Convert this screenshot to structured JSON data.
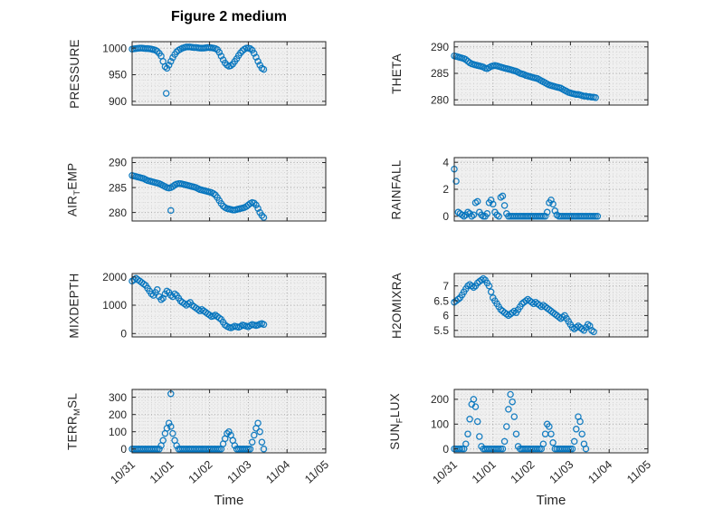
{
  "figure": {
    "title": "Figure 2 medium",
    "marker_color": "#0072BD",
    "axis_color": "#262626",
    "grid_major_color": "#ababab",
    "grid_minor_color": "#d6d6d6",
    "plot_bg": "#f0f0f0"
  },
  "x_axis": {
    "label": "Time",
    "lim": [
      0,
      5
    ],
    "tick_values": [
      0,
      1,
      2,
      3,
      4,
      5
    ],
    "tick_labels": [
      "10/31",
      "11/01",
      "11/02",
      "11/03",
      "11/04",
      "11/05"
    ],
    "minor_step": 0.1
  },
  "chart_data": [
    {
      "name": "pressure",
      "type": "scatter",
      "ylabel_parts": [
        {
          "text": "PRESSURE",
          "sub": false
        }
      ],
      "ylim": [
        893,
        1012
      ],
      "yticks": [
        {
          "v": 900,
          "label": "900"
        },
        {
          "v": 950,
          "label": "950"
        },
        {
          "v": 1000,
          "label": "1000"
        }
      ],
      "y_minor_step": 10,
      "x_start": 0,
      "x_step": 0.05,
      "y": [
        998,
        998.5,
        999,
        999.5,
        1000,
        1000,
        999.5,
        999,
        999,
        998.5,
        998,
        997,
        996,
        994,
        990,
        985,
        975,
        965,
        962,
        968,
        975,
        982,
        988,
        993,
        996,
        998,
        1000,
        1001,
        1002,
        1002,
        1002,
        1001.5,
        1001,
        1001,
        1000.5,
        1000,
        1000,
        1000,
        1000.5,
        1001,
        1001,
        1000.5,
        1000,
        999,
        997,
        992,
        985,
        978,
        972,
        968,
        966,
        967,
        970,
        975,
        980,
        986,
        991,
        995,
        998,
        1000,
        1000,
        999,
        996,
        990,
        983,
        975,
        968,
        962,
        960
      ],
      "extra_points": [
        [
          0.88,
          915
        ]
      ],
      "show_x_tick_labels": false
    },
    {
      "name": "theta",
      "type": "scatter",
      "ylabel_parts": [
        {
          "text": "THETA",
          "sub": false
        }
      ],
      "ylim": [
        279,
        291
      ],
      "yticks": [
        {
          "v": 280,
          "label": "280"
        },
        {
          "v": 285,
          "label": "285"
        },
        {
          "v": 290,
          "label": "290"
        }
      ],
      "y_minor_step": 1,
      "x_start": 0,
      "x_step": 0.05,
      "y": [
        288.3,
        288.2,
        288.1,
        288,
        287.9,
        287.8,
        287.6,
        287.3,
        287,
        286.8,
        286.7,
        286.6,
        286.5,
        286.4,
        286.3,
        286.2,
        286,
        285.9,
        286.1,
        286.3,
        286.4,
        286.5,
        286.4,
        286.3,
        286.2,
        286.1,
        286,
        285.9,
        285.8,
        285.7,
        285.6,
        285.5,
        285.4,
        285.2,
        285,
        284.9,
        284.8,
        284.6,
        284.5,
        284.4,
        284.3,
        284.2,
        284.1,
        284,
        283.8,
        283.6,
        283.4,
        283.2,
        283,
        282.8,
        282.7,
        282.6,
        282.5,
        282.4,
        282.3,
        282.2,
        282,
        281.8,
        281.6,
        281.4,
        281.3,
        281.2,
        281.1,
        281,
        281,
        280.9,
        280.8,
        280.7,
        280.7,
        280.6,
        280.6,
        280.5,
        280.5,
        280.4
      ],
      "extra_points": [],
      "show_x_tick_labels": false
    },
    {
      "name": "air-temp",
      "type": "scatter",
      "ylabel_parts": [
        {
          "text": "AIR",
          "sub": false
        },
        {
          "text": "T",
          "sub": true
        },
        {
          "text": "EMP",
          "sub": false
        }
      ],
      "ylim": [
        278.3,
        291
      ],
      "yticks": [
        {
          "v": 280,
          "label": "280"
        },
        {
          "v": 285,
          "label": "285"
        },
        {
          "v": 290,
          "label": "290"
        }
      ],
      "y_minor_step": 1,
      "x_start": 0,
      "x_step": 0.05,
      "y": [
        287.4,
        287.3,
        287.2,
        287.1,
        287,
        286.9,
        286.8,
        286.6,
        286.4,
        286.3,
        286.2,
        286.1,
        286,
        285.9,
        285.8,
        285.6,
        285.4,
        285.2,
        285,
        284.9,
        285,
        285.2,
        285.5,
        285.7,
        285.8,
        285.8,
        285.7,
        285.6,
        285.5,
        285.4,
        285.3,
        285.2,
        285.1,
        285,
        284.8,
        284.6,
        284.5,
        284.4,
        284.3,
        284.2,
        284.1,
        284,
        283.8,
        283.5,
        283,
        282.4,
        281.8,
        281.3,
        281,
        280.8,
        280.7,
        280.6,
        280.5,
        280.5,
        280.6,
        280.7,
        280.8,
        280.9,
        281,
        281.2,
        281.5,
        281.8,
        282,
        281.9,
        281.5,
        280.8,
        280,
        279.4,
        279
      ],
      "extra_points": [
        [
          1.0,
          280.4
        ]
      ],
      "show_x_tick_labels": false
    },
    {
      "name": "rainfall",
      "type": "scatter",
      "ylabel_parts": [
        {
          "text": "RAINFALL",
          "sub": false
        }
      ],
      "ylim": [
        -0.35,
        4.35
      ],
      "yticks": [
        {
          "v": 0,
          "label": "0"
        },
        {
          "v": 2,
          "label": "2"
        },
        {
          "v": 4,
          "label": "4"
        }
      ],
      "y_minor_step": 0.5,
      "x_start": 0,
      "x_step": 0.05,
      "y": [
        3.5,
        2.6,
        0.3,
        0.2,
        0.1,
        0,
        0.1,
        0.3,
        0.2,
        0,
        0.1,
        1,
        1.1,
        0.3,
        0.1,
        0,
        0,
        0.2,
        1,
        1.2,
        0.9,
        0.3,
        0.1,
        0,
        1.4,
        1.5,
        0.8,
        0.2,
        0,
        0,
        0,
        0,
        0,
        0,
        0,
        0,
        0,
        0,
        0,
        0,
        0,
        0,
        0,
        0,
        0,
        0,
        0,
        0,
        0.3,
        1,
        1.2,
        0.9,
        0.4,
        0.1,
        0,
        0,
        0,
        0,
        0,
        0,
        0,
        0,
        0,
        0,
        0,
        0,
        0,
        0,
        0,
        0,
        0,
        0,
        0,
        0,
        0
      ],
      "extra_points": [],
      "show_x_tick_labels": false
    },
    {
      "name": "mixdepth",
      "type": "scatter",
      "ylabel_parts": [
        {
          "text": "MIXDEPTH",
          "sub": false
        }
      ],
      "ylim": [
        -120,
        2120
      ],
      "yticks": [
        {
          "v": 0,
          "label": "0"
        },
        {
          "v": 1000,
          "label": "1000"
        },
        {
          "v": 2000,
          "label": "2000"
        }
      ],
      "y_minor_step": 200,
      "x_start": 0,
      "x_step": 0.05,
      "y": [
        1850,
        1900,
        1950,
        1900,
        1850,
        1800,
        1750,
        1700,
        1600,
        1500,
        1400,
        1350,
        1450,
        1550,
        1300,
        1200,
        1250,
        1400,
        1500,
        1450,
        1350,
        1300,
        1400,
        1350,
        1250,
        1150,
        1100,
        1050,
        1000,
        1050,
        1100,
        1000,
        950,
        900,
        850,
        800,
        850,
        800,
        750,
        700,
        650,
        600,
        620,
        650,
        600,
        550,
        500,
        400,
        300,
        250,
        220,
        200,
        230,
        260,
        240,
        220,
        250,
        300,
        280,
        260,
        240,
        280,
        320,
        300,
        280,
        300,
        330,
        350,
        320
      ],
      "extra_points": [],
      "show_x_tick_labels": false
    },
    {
      "name": "h2omixra",
      "type": "scatter",
      "ylabel_parts": [
        {
          "text": "H2OMIXRA",
          "sub": false
        }
      ],
      "ylim": [
        5.28,
        7.42
      ],
      "yticks": [
        {
          "v": 5.5,
          "label": "5.5"
        },
        {
          "v": 6,
          "label": "6"
        },
        {
          "v": 6.5,
          "label": "6.5"
        },
        {
          "v": 7,
          "label": "7"
        }
      ],
      "y_minor_step": 0.1,
      "x_start": 0,
      "x_step": 0.05,
      "y": [
        6.45,
        6.5,
        6.55,
        6.6,
        6.7,
        6.8,
        6.9,
        7,
        7.05,
        7,
        6.95,
        7,
        7.1,
        7.15,
        7.2,
        7.25,
        7.2,
        7.1,
        7,
        6.8,
        6.6,
        6.5,
        6.4,
        6.3,
        6.2,
        6.15,
        6.1,
        6.05,
        6,
        6.05,
        6.1,
        6.15,
        6.1,
        6.2,
        6.3,
        6.4,
        6.45,
        6.5,
        6.55,
        6.5,
        6.45,
        6.4,
        6.45,
        6.4,
        6.35,
        6.3,
        6.35,
        6.3,
        6.25,
        6.2,
        6.15,
        6.1,
        6.05,
        6,
        5.95,
        5.9,
        5.95,
        6,
        5.9,
        5.8,
        5.7,
        5.6,
        5.55,
        5.6,
        5.65,
        5.6,
        5.55,
        5.5,
        5.6,
        5.7,
        5.65,
        5.5,
        5.45
      ],
      "extra_points": [],
      "show_x_tick_labels": false
    },
    {
      "name": "terr-msl",
      "type": "scatter",
      "ylabel_parts": [
        {
          "text": "TERR",
          "sub": false
        },
        {
          "text": "M",
          "sub": true
        },
        {
          "text": "SL",
          "sub": false
        }
      ],
      "ylim": [
        -22,
        345
      ],
      "yticks": [
        {
          "v": 0,
          "label": "0"
        },
        {
          "v": 100,
          "label": "100"
        },
        {
          "v": 200,
          "label": "200"
        },
        {
          "v": 300,
          "label": "300"
        }
      ],
      "y_minor_step": 20,
      "x_start": 0,
      "x_step": 0.05,
      "y": [
        0,
        0,
        0,
        0,
        0,
        0,
        0,
        0,
        0,
        0,
        0,
        0,
        0,
        0,
        0,
        20,
        50,
        90,
        120,
        150,
        130,
        90,
        50,
        20,
        0,
        0,
        0,
        0,
        0,
        0,
        0,
        0,
        0,
        0,
        0,
        0,
        0,
        0,
        0,
        0,
        0,
        0,
        0,
        0,
        0,
        0,
        0,
        30,
        60,
        90,
        100,
        80,
        50,
        20,
        0,
        0,
        0,
        0,
        0,
        0,
        0,
        0,
        40,
        80,
        120,
        150,
        100,
        40,
        0
      ],
      "extra_points": [
        [
          1.0,
          320
        ]
      ],
      "show_x_tick_labels": true
    },
    {
      "name": "sun-flux",
      "type": "scatter",
      "ylabel_parts": [
        {
          "text": "SUN",
          "sub": false
        },
        {
          "text": "F",
          "sub": true
        },
        {
          "text": "LUX",
          "sub": false
        }
      ],
      "ylim": [
        -16,
        240
      ],
      "yticks": [
        {
          "v": 0,
          "label": "0"
        },
        {
          "v": 100,
          "label": "100"
        },
        {
          "v": 200,
          "label": "200"
        }
      ],
      "y_minor_step": 20,
      "x_start": 0,
      "x_step": 0.05,
      "y": [
        0,
        0,
        0,
        0,
        0,
        0,
        20,
        60,
        120,
        180,
        200,
        170,
        110,
        50,
        10,
        0,
        0,
        0,
        0,
        0,
        0,
        0,
        0,
        0,
        0,
        0,
        30,
        90,
        160,
        220,
        190,
        130,
        60,
        10,
        0,
        0,
        0,
        0,
        0,
        0,
        0,
        0,
        0,
        0,
        0,
        0,
        20,
        60,
        100,
        90,
        60,
        25,
        0,
        0,
        0,
        0,
        0,
        0,
        0,
        0,
        0,
        0,
        30,
        80,
        130,
        110,
        60,
        20,
        0
      ],
      "extra_points": [],
      "show_x_tick_labels": true
    }
  ]
}
